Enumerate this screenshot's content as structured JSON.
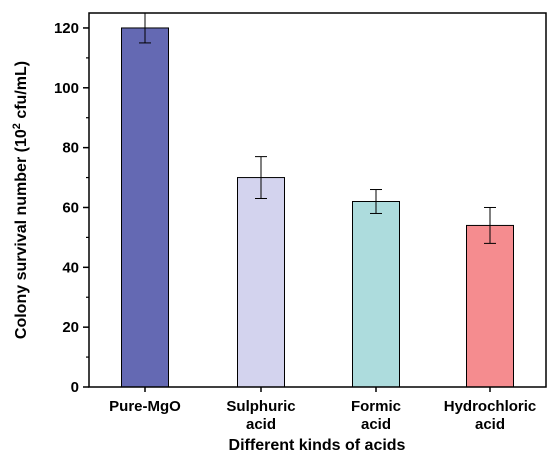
{
  "chart_data": {
    "type": "bar",
    "title": "",
    "xlabel": "Different kinds of  acids",
    "ylabel": "Colony survival number (10² cfu/mL)",
    "ylabel_parts": {
      "pre": "Colony survival number (10",
      "sup": "2",
      "post": " cfu/mL)"
    },
    "ylim": [
      0,
      125
    ],
    "yticks": [
      0,
      20,
      40,
      60,
      80,
      100,
      120
    ],
    "categories": [
      {
        "lines": [
          "Pure-MgO"
        ],
        "value": 120,
        "error": 5,
        "color": "#6469b3"
      },
      {
        "lines": [
          "Sulphuric",
          "acid"
        ],
        "value": 70,
        "error": 7,
        "color": "#d3d3ee"
      },
      {
        "lines": [
          "Formic",
          "acid"
        ],
        "value": 62,
        "error": 4,
        "color": "#addcdd"
      },
      {
        "lines": [
          "Hydrochloric",
          "acid"
        ],
        "value": 54,
        "error": 6,
        "color": "#f58c8f"
      }
    ],
    "grid": false,
    "legend": "none"
  }
}
